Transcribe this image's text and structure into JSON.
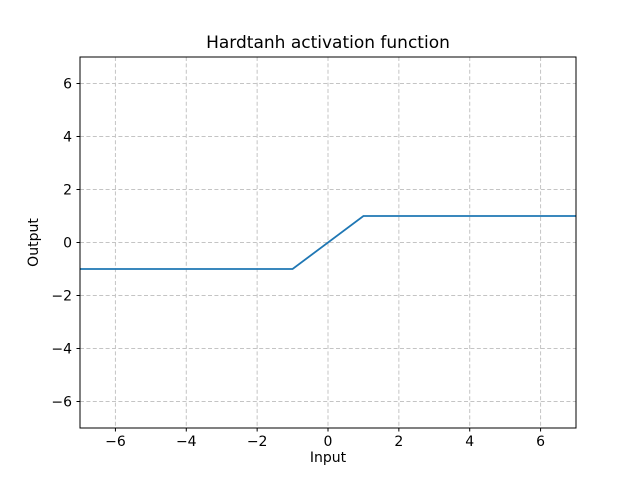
{
  "chart_data": {
    "type": "line",
    "title": "Hardtanh activation function",
    "xlabel": "Input",
    "ylabel": "Output",
    "xlim": [
      -7,
      7
    ],
    "ylim": [
      -7,
      7
    ],
    "xticks": [
      -6,
      -4,
      -2,
      0,
      2,
      4,
      6
    ],
    "yticks": [
      -6,
      -4,
      -2,
      0,
      2,
      4,
      6
    ],
    "grid": true,
    "grid_style": "dashed",
    "grid_color": "#c4c4c4",
    "axis_color": "#000000",
    "background_color": "#ffffff",
    "legend": "none",
    "series": [
      {
        "name": "hardtanh",
        "color": "#1f77b4",
        "x": [
          -7,
          -1,
          1,
          7
        ],
        "y": [
          -1,
          -1,
          1,
          1
        ]
      }
    ]
  }
}
